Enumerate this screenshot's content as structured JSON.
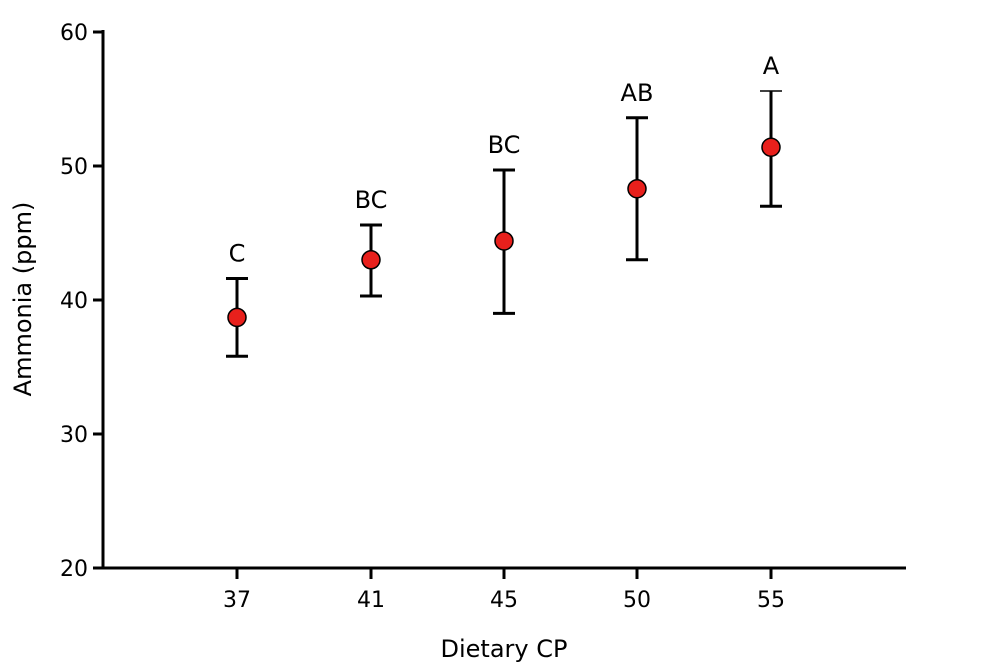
{
  "chart_data": {
    "type": "scatter",
    "title": "",
    "xlabel": "Dietary CP",
    "ylabel": "Ammonia (ppm)",
    "ylim": [
      20,
      60
    ],
    "yticks": [
      20,
      30,
      40,
      50,
      60
    ],
    "categories": [
      "37",
      "41",
      "45",
      "50",
      "55"
    ],
    "points": [
      {
        "category": "37",
        "y": 38.7,
        "err_low": 35.8,
        "err_high": 41.6,
        "group_label": "C"
      },
      {
        "category": "41",
        "y": 43.0,
        "err_low": 40.3,
        "err_high": 45.6,
        "group_label": "BC"
      },
      {
        "category": "45",
        "y": 44.4,
        "err_low": 39.0,
        "err_high": 49.7,
        "group_label": "BC"
      },
      {
        "category": "50",
        "y": 48.3,
        "err_low": 43.0,
        "err_high": 53.6,
        "group_label": "AB"
      },
      {
        "category": "55",
        "y": 51.4,
        "err_low": 47.0,
        "err_high": 55.6,
        "group_label": "A"
      }
    ],
    "marker_color": "#e8201c",
    "marker_edge_color": "#000000",
    "grid": false,
    "legend": "none"
  }
}
